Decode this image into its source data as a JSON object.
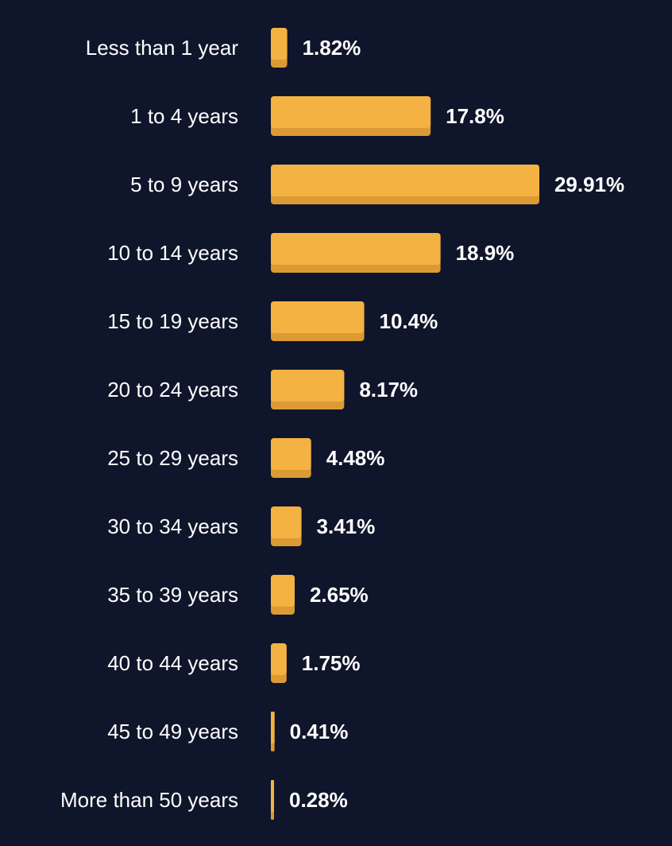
{
  "chart_data": {
    "type": "bar",
    "orientation": "horizontal",
    "categories": [
      "Less than 1 year",
      "1 to 4 years",
      "5 to 9 years",
      "10 to 14 years",
      "15 to 19 years",
      "20 to 24 years",
      "25 to 29 years",
      "30 to 34 years",
      "35 to 39 years",
      "40 to 44 years",
      "45 to 49 years",
      "More than 50 years"
    ],
    "values": [
      1.82,
      17.8,
      29.91,
      18.9,
      10.4,
      8.17,
      4.48,
      3.41,
      2.65,
      1.75,
      0.41,
      0.28
    ],
    "value_labels": [
      "1.82%",
      "17.8%",
      "29.91%",
      "18.9%",
      "10.4%",
      "8.17%",
      "4.48%",
      "3.41%",
      "2.65%",
      "1.75%",
      "0.41%",
      "0.28%"
    ],
    "title": "",
    "xlabel": "",
    "ylabel": "",
    "grid": false,
    "legend": "none",
    "colors": {
      "background": "#0f152a",
      "bar": "#f3b242",
      "bar_shadow": "#dc9a35",
      "text": "#ffffff"
    }
  }
}
